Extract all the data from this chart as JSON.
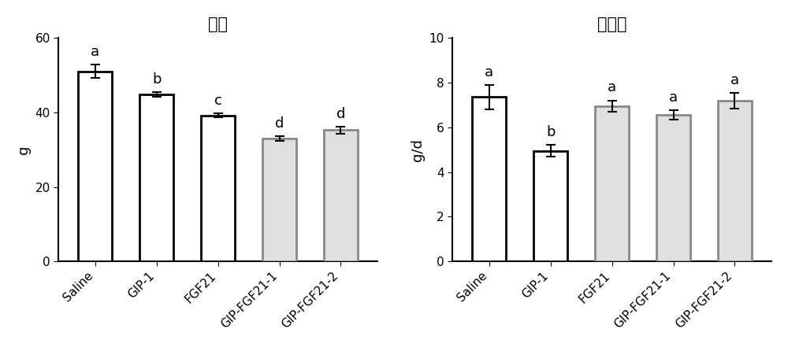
{
  "chart1": {
    "title": "体重",
    "ylabel": "g",
    "categories": [
      "Saline",
      "GIP-1",
      "FGF21",
      "GIP-FGF21-1",
      "GIP-FGF21-2"
    ],
    "values": [
      51.0,
      44.8,
      39.2,
      33.0,
      35.2
    ],
    "errors": [
      1.8,
      0.6,
      0.5,
      0.6,
      0.9
    ],
    "letters": [
      "a",
      "b",
      "c",
      "d",
      "d"
    ],
    "ylim": [
      0,
      60
    ],
    "yticks": [
      0,
      20,
      40,
      60
    ],
    "bar_colors": [
      "#ffffff",
      "#ffffff",
      "#ffffff",
      "#e0e0e0",
      "#e0e0e0"
    ],
    "bar_edge_colors": [
      "#000000",
      "#000000",
      "#000000",
      "#888888",
      "#888888"
    ],
    "bar_linewidth": [
      2.0,
      2.0,
      2.0,
      2.0,
      2.0
    ]
  },
  "chart2": {
    "title": "饮食量",
    "ylabel": "g/d",
    "categories": [
      "Saline",
      "GIP-1",
      "FGF21",
      "GIP-FGF21-1",
      "GIP-FGF21-2"
    ],
    "values": [
      7.35,
      4.95,
      6.95,
      6.55,
      7.2
    ],
    "errors": [
      0.55,
      0.25,
      0.25,
      0.2,
      0.35
    ],
    "letters": [
      "a",
      "b",
      "a",
      "a",
      "a"
    ],
    "ylim": [
      0,
      10
    ],
    "yticks": [
      0,
      2,
      4,
      6,
      8,
      10
    ],
    "bar_colors": [
      "#ffffff",
      "#ffffff",
      "#e0e0e0",
      "#e0e0e0",
      "#e0e0e0"
    ],
    "bar_edge_colors": [
      "#000000",
      "#000000",
      "#888888",
      "#888888",
      "#888888"
    ],
    "bar_linewidth": [
      2.0,
      2.0,
      2.0,
      2.0,
      2.0
    ]
  },
  "title_fontsize": 15,
  "label_fontsize": 13,
  "tick_fontsize": 11,
  "letter_fontsize": 13,
  "bar_width": 0.55,
  "capsize": 4,
  "error_linewidth": 1.5,
  "background_color": "#ffffff"
}
